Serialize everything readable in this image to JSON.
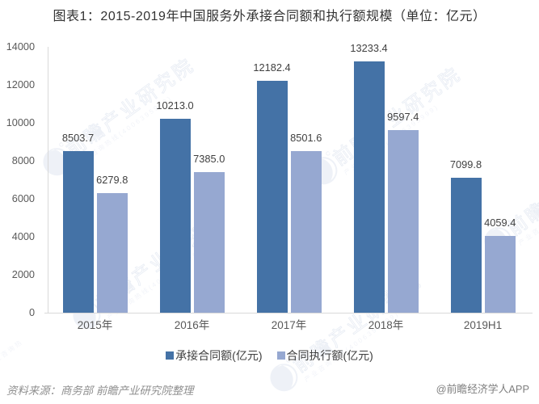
{
  "title": "图表1：2015-2019年中国服务外承接合同额和执行额规模（单位：亿元）",
  "chart_data": {
    "type": "bar",
    "categories": [
      "2015年",
      "2016年",
      "2017年",
      "2018年",
      "2019H1"
    ],
    "series": [
      {
        "name": "承接合同额(亿元)",
        "color": "#4472a6",
        "values": [
          8503.7,
          10213.0,
          12182.4,
          13233.4,
          7099.8
        ]
      },
      {
        "name": "合同执行额(亿元)",
        "color": "#96a8d1",
        "values": [
          6279.8,
          7385.0,
          8501.6,
          9597.4,
          4059.4
        ]
      }
    ],
    "title": "图表1：2015-2019年中国服务外承接合同额和执行额规模（单位：亿元）",
    "xlabel": "",
    "ylabel": "",
    "ylim": [
      0,
      14000
    ],
    "yticks": [
      0,
      2000,
      4000,
      6000,
      8000,
      10000,
      12000,
      14000
    ],
    "grid": false,
    "legend_position": "bottom",
    "value_label_decimals": 1
  },
  "watermark": {
    "main_text": "前瞻产业研究院",
    "sub_text": "产业咨询热线(4006395999)",
    "color": "#ebeff6"
  },
  "footer": {
    "source": "资料来源：商务部 前瞻产业研究院整理",
    "brand": "@前瞻经济学人APP"
  }
}
